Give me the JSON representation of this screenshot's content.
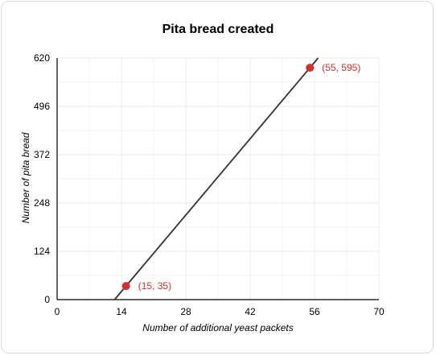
{
  "chart_data": {
    "type": "line",
    "title": "Pita bread created",
    "xlabel": "Number of additional yeast packets",
    "ylabel": "Number of pita bread",
    "xlim": [
      0,
      70
    ],
    "ylim": [
      0,
      620
    ],
    "x_ticks": [
      0,
      14,
      28,
      42,
      56,
      70
    ],
    "y_ticks": [
      0,
      124,
      248,
      372,
      496,
      620
    ],
    "x_tick_labels": [
      "0",
      "14",
      "28",
      "42",
      "56",
      "70"
    ],
    "y_tick_labels": [
      "0",
      "124",
      "248",
      "372",
      "496",
      "620"
    ],
    "grid": true,
    "line": {
      "slope": 14,
      "intercept": -175
    },
    "points": [
      {
        "x": 15,
        "y": 35,
        "label": "(15, 35)"
      },
      {
        "x": 55,
        "y": 595,
        "label": "(55, 595)"
      }
    ],
    "colors": {
      "line": "#333333",
      "points": "#d32f2f",
      "grid": "#ebebeb"
    }
  }
}
